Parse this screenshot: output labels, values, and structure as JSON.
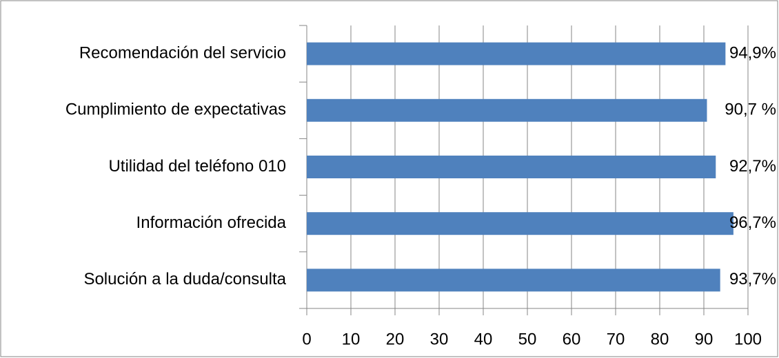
{
  "chart_data": {
    "type": "bar",
    "orientation": "horizontal",
    "categories": [
      "Recomendación del servicio",
      "Cumplimiento de expectativas",
      "Utilidad del teléfono 010",
      "Información ofrecida",
      "Solución a la duda/consulta"
    ],
    "values": [
      94.9,
      90.7,
      92.7,
      96.7,
      93.7
    ],
    "value_labels": [
      "94,9%",
      "90,7 %",
      "92,7%",
      "96,7%",
      "93,7%"
    ],
    "color": "#4f81bd",
    "xlim": [
      0,
      100
    ],
    "xticks": [
      0,
      10,
      20,
      30,
      40,
      50,
      60,
      70,
      80,
      90,
      100
    ],
    "grid": true
  }
}
